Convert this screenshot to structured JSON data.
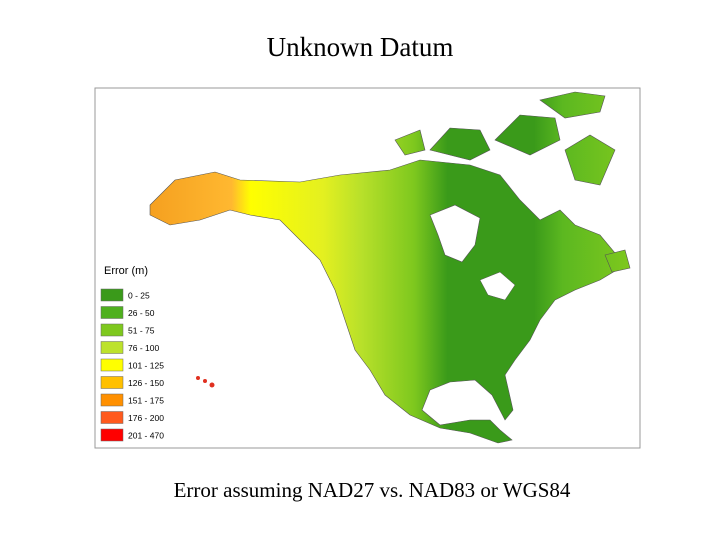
{
  "title": "Unknown Datum",
  "caption": "Error assuming NAD27 vs. NAD83 or WGS84",
  "legend": {
    "title": "Error (m)",
    "items": [
      {
        "label": "0 - 25",
        "color": "#3a9a1a"
      },
      {
        "label": "26 - 50",
        "color": "#4fb01e"
      },
      {
        "label": "51 - 75",
        "color": "#7ec81e"
      },
      {
        "label": "76 - 100",
        "color": "#bde22c"
      },
      {
        "label": "101 - 125",
        "color": "#ffff00"
      },
      {
        "label": "126 - 150",
        "color": "#ffc000"
      },
      {
        "label": "151 - 175",
        "color": "#ff9000"
      },
      {
        "label": "176 - 200",
        "color": "#ff5a1e"
      },
      {
        "label": "201 - 470",
        "color": "#ff0000"
      }
    ]
  }
}
